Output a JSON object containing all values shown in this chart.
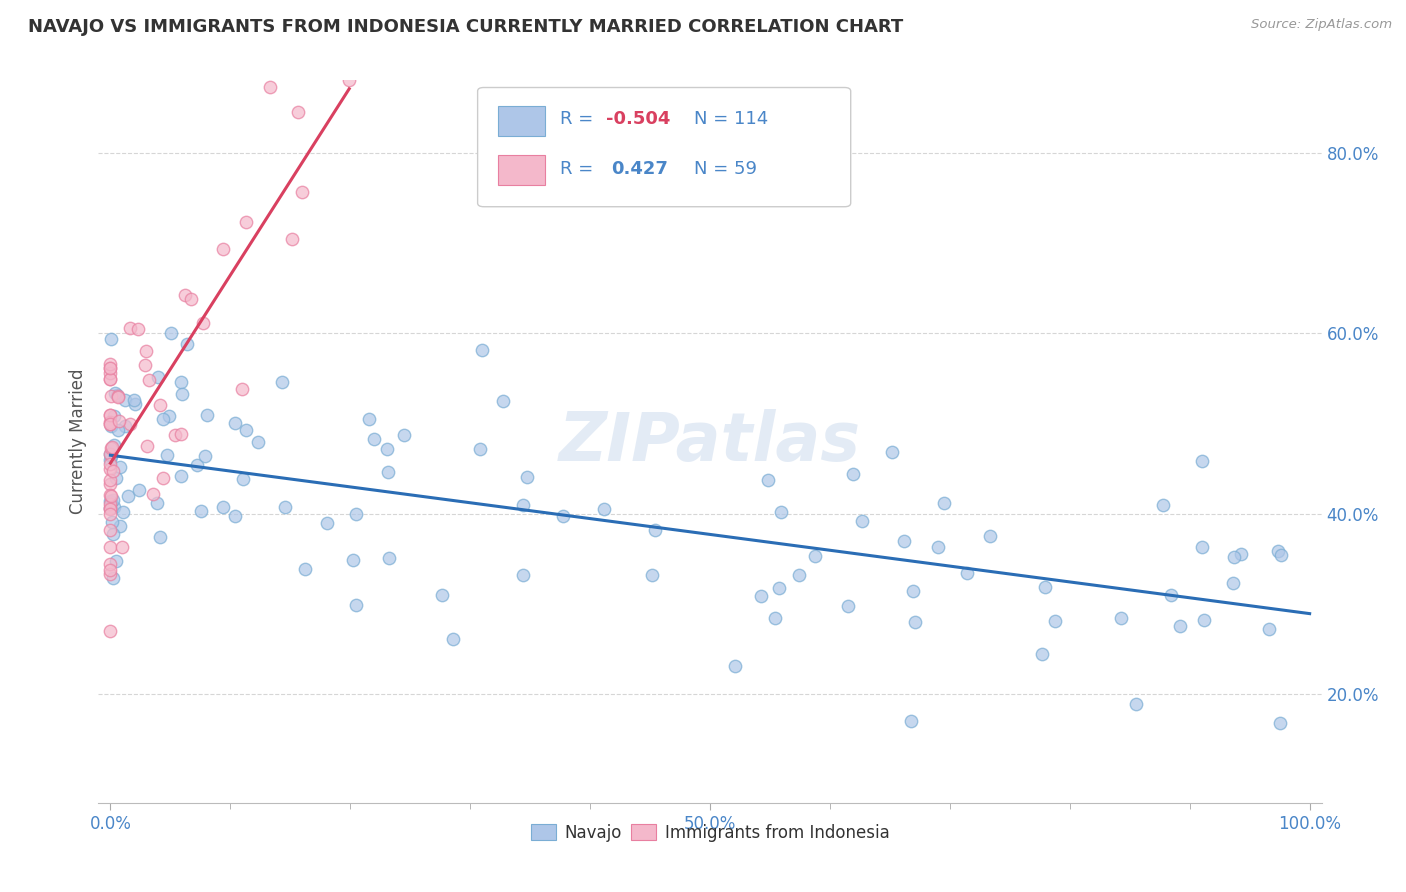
{
  "title": "NAVAJO VS IMMIGRANTS FROM INDONESIA CURRENTLY MARRIED CORRELATION CHART",
  "source": "Source: ZipAtlas.com",
  "ylabel": "Currently Married",
  "navajo_color": "#aec6e8",
  "navajo_edge_color": "#7aadd4",
  "indonesia_color": "#f4b8cb",
  "indonesia_edge_color": "#e87fa0",
  "navajo_line_color": "#2a6db5",
  "indonesia_line_color": "#d94060",
  "background_color": "#ffffff",
  "grid_color": "#cccccc",
  "watermark": "ZIPatlas",
  "title_color": "#333333",
  "axis_color": "#4a86c8",
  "ylabel_color": "#555555",
  "legend_text_color": "#4a86c8",
  "legend_n_color": "#4a86c8",
  "legend_r_neg_color": "#d94060",
  "legend_r_pos_color": "#4a86c8"
}
